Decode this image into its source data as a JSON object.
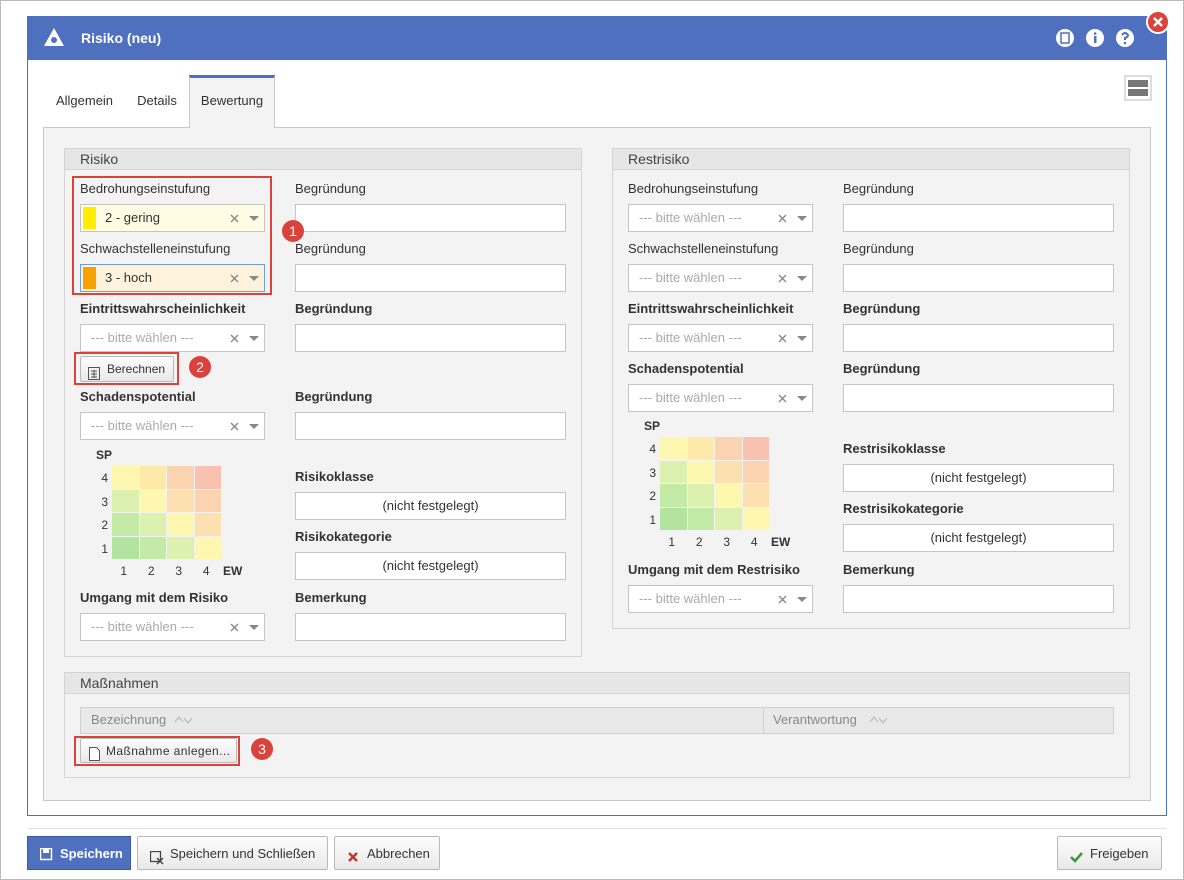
{
  "window": {
    "title": "Risiko (neu)"
  },
  "tabs": [
    "Allgemein",
    "Details",
    "Bewertung"
  ],
  "risiko": {
    "title": "Risiko",
    "rows": [
      {
        "label": "Bedrohungseinstufung",
        "value": "2 - gering",
        "note": "Begründung"
      },
      {
        "label": "Schwachstelleneinstufung",
        "value": "3 - hoch",
        "note": "Begründung"
      },
      {
        "label": "Eintrittswahrscheinlichkeit",
        "value": "--- bitte wählen ---",
        "note": "Begründung"
      },
      {
        "label": "Schadenspotential",
        "value": "--- bitte wählen ---",
        "note": "Begründung"
      }
    ],
    "calculate": "Berechnen",
    "matrix": {
      "y_title": "SP",
      "y_labels": [
        "4",
        "3",
        "2",
        "1"
      ],
      "x_labels": [
        "1",
        "2",
        "3",
        "4"
      ],
      "x_title": "EW"
    },
    "class": {
      "label": "Risikoklasse",
      "value": "(nicht festgelegt)"
    },
    "category": {
      "label": "Risikokategorie",
      "value": "(nicht festgelegt)"
    },
    "handling": {
      "label": "Umgang mit dem Risiko",
      "value": "--- bitte wählen ---",
      "note": "Bemerkung"
    }
  },
  "restrisiko": {
    "title": "Restrisiko",
    "rows": [
      {
        "label": "Bedrohungseinstufung",
        "value": "--- bitte wählen ---",
        "note": "Begründung"
      },
      {
        "label": "Schwachstelleneinstufung",
        "value": "--- bitte wählen ---",
        "note": "Begründung"
      },
      {
        "label": "Eintrittswahrscheinlichkeit",
        "value": "--- bitte wählen ---",
        "note": "Begründung"
      },
      {
        "label": "Schadenspotential",
        "value": "--- bitte wählen ---",
        "note": "Begründung"
      }
    ],
    "matrix": {
      "y_title": "SP",
      "y_labels": [
        "4",
        "3",
        "2",
        "1"
      ],
      "x_labels": [
        "1",
        "2",
        "3",
        "4"
      ],
      "x_title": "EW"
    },
    "class": {
      "label": "Restrisikoklasse",
      "value": "(nicht festgelegt)"
    },
    "category": {
      "label": "Restrisikokategorie",
      "value": "(nicht festgelegt)"
    },
    "handling": {
      "label": "Umgang mit dem Restrisiko",
      "value": "--- bitte wählen ---",
      "note": "Bemerkung"
    }
  },
  "measures": {
    "title": "Maßnahmen",
    "columns": [
      "Bezeichnung",
      "Verantwortung"
    ],
    "add": "Maßnahme anlegen..."
  },
  "annotations": [
    "1",
    "2",
    "3"
  ],
  "footer": {
    "save": "Speichern",
    "save_close": "Speichern und Schließen",
    "cancel": "Abbrechen",
    "release": "Freigeben"
  }
}
